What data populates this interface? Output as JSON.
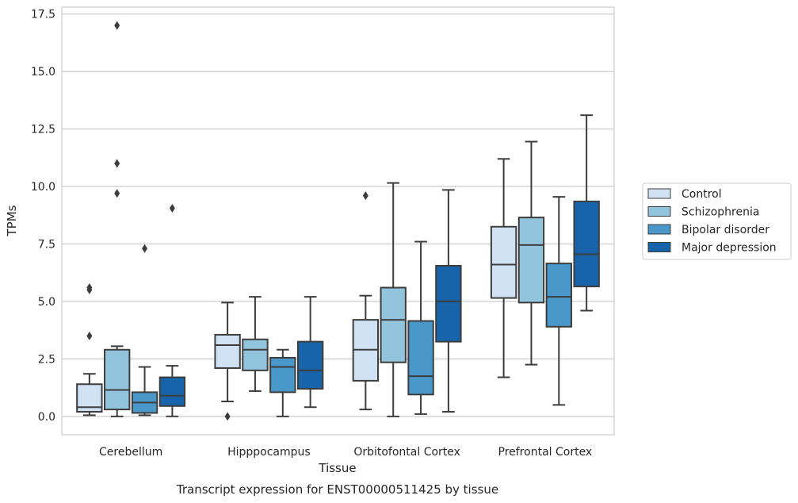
{
  "chart_data": {
    "type": "box",
    "xlabel": "Tissue",
    "ylabel": "TPMs",
    "caption": "Transcript expression for ENST00000511425 by tissue",
    "ylim": [
      -0.8,
      17.8
    ],
    "yticks": [
      "0.0",
      "2.5",
      "5.0",
      "7.5",
      "10.0",
      "12.5",
      "15.0",
      "17.5"
    ],
    "grid": true,
    "legend_position": "right",
    "categories": [
      "Cerebellum",
      "Hipppocampus",
      "Orbitofontal Cortex",
      "Prefrontal Cortex"
    ],
    "series": [
      {
        "name": "Control",
        "color": "#cfe1f2",
        "boxes": [
          {
            "q1": 0.2,
            "median": 0.4,
            "q3": 1.4,
            "whisker_low": 0.05,
            "whisker_high": 1.85,
            "outliers": [
              3.5,
              5.5,
              5.6
            ]
          },
          {
            "q1": 2.1,
            "median": 3.1,
            "q3": 3.55,
            "whisker_low": 0.65,
            "whisker_high": 4.95,
            "outliers": [
              0.0
            ]
          },
          {
            "q1": 1.55,
            "median": 2.9,
            "q3": 4.2,
            "whisker_low": 0.3,
            "whisker_high": 5.25,
            "outliers": [
              9.6
            ]
          },
          {
            "q1": 5.15,
            "median": 6.6,
            "q3": 8.25,
            "whisker_low": 1.7,
            "whisker_high": 11.2,
            "outliers": []
          }
        ]
      },
      {
        "name": "Schizophrenia",
        "color": "#93c4de",
        "boxes": [
          {
            "q1": 0.3,
            "median": 1.15,
            "q3": 2.9,
            "whisker_low": 0.0,
            "whisker_high": 3.05,
            "outliers": [
              17.0,
              11.0,
              9.7
            ]
          },
          {
            "q1": 2.0,
            "median": 2.9,
            "q3": 3.35,
            "whisker_low": 1.1,
            "whisker_high": 5.2,
            "outliers": []
          },
          {
            "q1": 2.35,
            "median": 4.2,
            "q3": 5.6,
            "whisker_low": 0.0,
            "whisker_high": 10.15,
            "outliers": []
          },
          {
            "q1": 4.95,
            "median": 7.45,
            "q3": 8.65,
            "whisker_low": 2.25,
            "whisker_high": 11.95,
            "outliers": []
          }
        ]
      },
      {
        "name": "Bipolar disorder",
        "color": "#4a98c9",
        "boxes": [
          {
            "q1": 0.15,
            "median": 0.6,
            "q3": 1.05,
            "whisker_low": 0.05,
            "whisker_high": 2.15,
            "outliers": [
              7.3
            ]
          },
          {
            "q1": 1.05,
            "median": 2.15,
            "q3": 2.55,
            "whisker_low": 0.0,
            "whisker_high": 2.9,
            "outliers": []
          },
          {
            "q1": 0.95,
            "median": 1.75,
            "q3": 4.15,
            "whisker_low": 0.1,
            "whisker_high": 7.6,
            "outliers": []
          },
          {
            "q1": 3.9,
            "median": 5.2,
            "q3": 6.65,
            "whisker_low": 0.5,
            "whisker_high": 9.55,
            "outliers": []
          }
        ]
      },
      {
        "name": "Major depression",
        "color": "#1764ab",
        "boxes": [
          {
            "q1": 0.45,
            "median": 0.9,
            "q3": 1.7,
            "whisker_low": 0.0,
            "whisker_high": 2.2,
            "outliers": [
              9.05
            ]
          },
          {
            "q1": 1.2,
            "median": 2.0,
            "q3": 3.25,
            "whisker_low": 0.4,
            "whisker_high": 5.2,
            "outliers": []
          },
          {
            "q1": 3.25,
            "median": 5.0,
            "q3": 6.55,
            "whisker_low": 0.2,
            "whisker_high": 9.85,
            "outliers": []
          },
          {
            "q1": 5.65,
            "median": 7.05,
            "q3": 9.35,
            "whisker_low": 4.6,
            "whisker_high": 13.1,
            "outliers": []
          }
        ]
      }
    ]
  }
}
